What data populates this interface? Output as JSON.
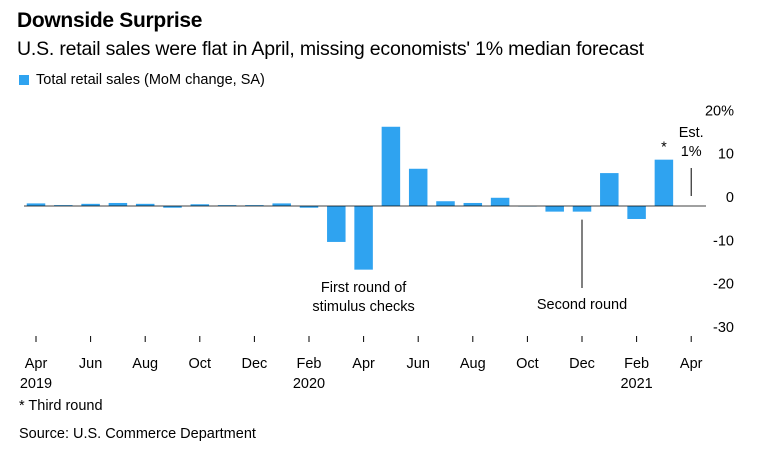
{
  "title": "Downside Surprise",
  "subtitle": "U.S. retail sales were flat in April, missing economists' 1% median forecast",
  "legend": {
    "label": "Total retail sales (MoM change, SA)",
    "color": "#2fa3f0"
  },
  "footnote": "* Third round",
  "source": "Source: U.S. Commerce Department",
  "chart_data": {
    "type": "bar",
    "categories": [
      "Apr 2019",
      "May 2019",
      "Jun 2019",
      "Jul 2019",
      "Aug 2019",
      "Sep 2019",
      "Oct 2019",
      "Nov 2019",
      "Dec 2019",
      "Jan 2020",
      "Feb 2020",
      "Mar 2020",
      "Apr 2020",
      "May 2020",
      "Jun 2020",
      "Jul 2020",
      "Aug 2020",
      "Sep 2020",
      "Oct 2020",
      "Nov 2020",
      "Dec 2020",
      "Jan 2021",
      "Feb 2021",
      "Mar 2021",
      "Apr 2021"
    ],
    "values": [
      0.6,
      0.2,
      0.5,
      0.7,
      0.5,
      -0.4,
      0.4,
      0.2,
      0.2,
      0.6,
      -0.4,
      -8.3,
      -14.7,
      18.3,
      8.6,
      1.1,
      0.7,
      1.9,
      -0.1,
      -1.3,
      -1.3,
      7.6,
      -3.0,
      10.7,
      0.0
    ],
    "series_name": "Total retail sales (MoM change, SA)",
    "ylim": [
      -30,
      20
    ],
    "yticks": [
      20,
      10,
      0,
      -10,
      -20,
      -30
    ],
    "ytick_labels": [
      "20%",
      "10",
      "0",
      "-10",
      "-20",
      "-30"
    ],
    "xticks": [
      {
        "index": 0,
        "label": "Apr",
        "year": "2019"
      },
      {
        "index": 2,
        "label": "Jun"
      },
      {
        "index": 4,
        "label": "Aug"
      },
      {
        "index": 6,
        "label": "Oct"
      },
      {
        "index": 8,
        "label": "Dec"
      },
      {
        "index": 10,
        "label": "Feb",
        "year": "2020"
      },
      {
        "index": 12,
        "label": "Apr"
      },
      {
        "index": 14,
        "label": "Jun"
      },
      {
        "index": 16,
        "label": "Aug"
      },
      {
        "index": 18,
        "label": "Oct"
      },
      {
        "index": 20,
        "label": "Dec"
      },
      {
        "index": 22,
        "label": "Feb",
        "year": "2021"
      },
      {
        "index": 24,
        "label": "Apr"
      }
    ],
    "estimate": {
      "index": 24,
      "value": 1,
      "label_line1": "Est.",
      "label_line2": "1%"
    },
    "annotations": [
      {
        "index": 12,
        "line1": "First round of",
        "line2": "stimulus checks"
      },
      {
        "index": 20,
        "line1": "Second round",
        "line2": ""
      },
      {
        "index": 23,
        "line1": "*",
        "line2": ""
      }
    ],
    "xlabel": "",
    "ylabel": ""
  }
}
